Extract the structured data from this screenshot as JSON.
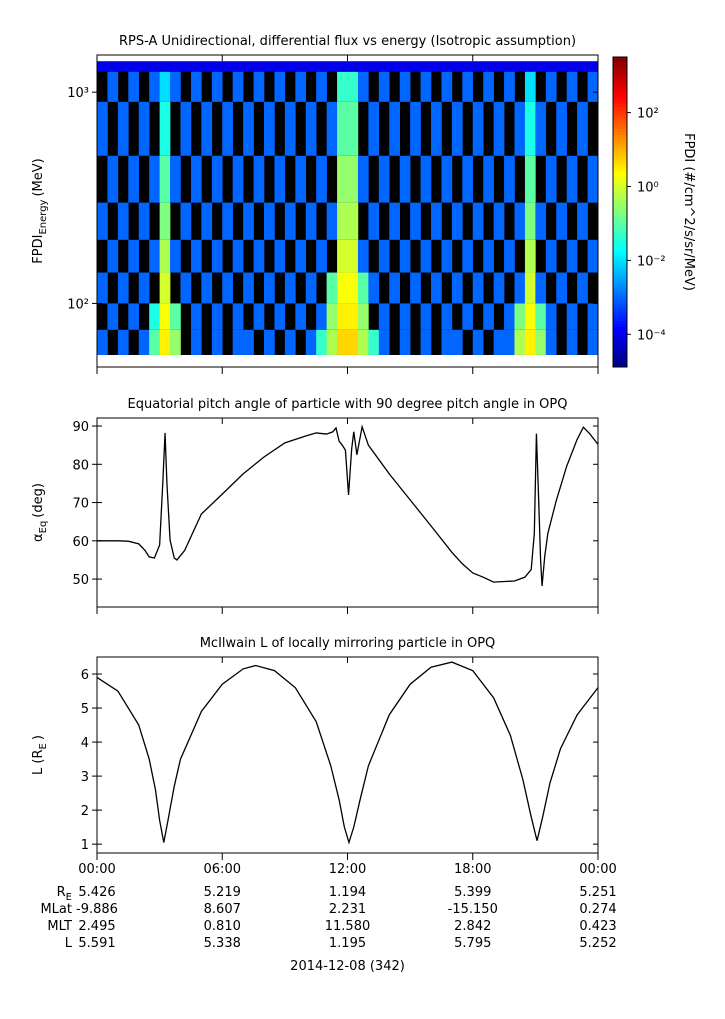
{
  "chart_data": [
    {
      "type": "heatmap",
      "title": "RPS-A Unidirectional, differential flux vs energy (Isotropic assumption)",
      "y_label": "FPDI",
      "y_label_sub": "Energy",
      "y_label_unit": "(MeV)",
      "z_label": "FPDI (#/cm^2/s/sr/MeV)",
      "log_y": true,
      "log_z": true,
      "xlim": [
        0,
        24
      ],
      "xticks": [
        0,
        6,
        12,
        18,
        24
      ],
      "ylim": [
        50,
        1500
      ],
      "yticks": [
        {
          "value": 100,
          "label": "10²"
        },
        {
          "value": 1000,
          "label": "10³"
        }
      ],
      "zlim": [
        1.3e-05,
        3200
      ],
      "zticks": [
        {
          "value": 0.0001,
          "label": "10⁻⁴"
        },
        {
          "value": 0.01,
          "label": "10⁻²"
        },
        {
          "value": 1,
          "label": "10⁰"
        },
        {
          "value": 100,
          "label": "10²"
        }
      ],
      "x_bins": [
        0,
        0.5,
        1,
        1.5,
        2,
        2.5,
        3,
        3.5,
        4,
        4.5,
        5,
        5.5,
        6,
        6.5,
        7,
        7.5,
        8,
        8.5,
        9,
        9.5,
        10,
        10.5,
        11,
        11.5,
        12,
        12.5,
        13,
        13.5,
        14,
        14.5,
        15,
        15.5,
        16,
        16.5,
        17,
        17.5,
        18,
        18.5,
        19,
        19.5,
        20,
        20.5,
        21,
        21.5,
        22,
        22.5,
        23,
        23.5,
        24
      ],
      "y_bins": [
        57,
        75,
        100,
        140,
        200,
        300,
        500,
        900,
        1250,
        1400
      ],
      "values": [
        [
          0.001,
          null,
          0.001,
          null,
          0.001,
          0.1,
          3,
          0.3,
          null,
          0.001,
          null,
          0.001,
          null,
          0.001,
          0.001,
          null,
          0.001,
          null,
          0.001,
          null,
          0.001,
          0.05,
          0.5,
          5,
          5,
          0.5,
          0.05,
          0.001,
          null,
          0.001,
          null,
          0.001,
          null,
          0.001,
          0.001,
          null,
          0.001,
          null,
          0.001,
          0.001,
          0.5,
          3,
          0.3,
          0.001,
          null,
          0.001,
          null,
          0.001
        ],
        [
          null,
          0.001,
          null,
          0.001,
          null,
          0.03,
          2,
          0.1,
          null,
          0.001,
          null,
          0.001,
          null,
          0.001,
          null,
          0.001,
          null,
          0.001,
          null,
          0.001,
          null,
          0.001,
          0.3,
          3,
          3,
          0.3,
          null,
          0.001,
          null,
          0.001,
          null,
          0.001,
          null,
          0.001,
          null,
          0.001,
          null,
          0.001,
          null,
          0.001,
          0.2,
          2,
          0.1,
          0.001,
          null,
          0.001,
          null,
          0.001
        ],
        [
          0.001,
          null,
          0.001,
          null,
          0.001,
          null,
          1,
          null,
          0.001,
          null,
          0.001,
          null,
          0.001,
          null,
          0.001,
          null,
          0.001,
          null,
          0.001,
          null,
          0.001,
          null,
          0.1,
          2,
          2,
          0.1,
          0.001,
          null,
          0.001,
          null,
          0.001,
          null,
          0.001,
          null,
          0.001,
          null,
          0.001,
          null,
          0.001,
          null,
          0.001,
          1,
          0.001,
          null,
          0.001,
          null,
          0.001,
          null
        ],
        [
          null,
          0.001,
          null,
          0.001,
          null,
          0.001,
          0.5,
          0.001,
          null,
          0.001,
          null,
          0.001,
          null,
          0.001,
          null,
          0.001,
          null,
          0.001,
          null,
          0.001,
          null,
          0.001,
          null,
          1,
          1,
          0.001,
          null,
          0.001,
          null,
          0.001,
          null,
          0.001,
          null,
          0.001,
          null,
          0.001,
          null,
          0.001,
          null,
          0.001,
          null,
          0.5,
          null,
          0.001,
          null,
          0.001,
          null,
          0.001
        ],
        [
          0.001,
          null,
          0.001,
          null,
          0.001,
          null,
          0.2,
          null,
          0.001,
          null,
          0.001,
          null,
          0.001,
          null,
          0.001,
          null,
          0.001,
          null,
          0.001,
          null,
          0.001,
          null,
          0.001,
          0.5,
          0.5,
          null,
          0.001,
          null,
          0.001,
          null,
          0.001,
          null,
          0.001,
          null,
          0.001,
          null,
          0.001,
          null,
          0.001,
          null,
          0.001,
          0.2,
          0.001,
          null,
          0.001,
          null,
          0.001,
          null
        ],
        [
          null,
          0.001,
          null,
          0.001,
          null,
          0.001,
          0.1,
          0.001,
          null,
          0.001,
          null,
          0.001,
          null,
          0.001,
          null,
          0.001,
          null,
          0.001,
          null,
          0.001,
          null,
          0.001,
          null,
          0.3,
          0.3,
          0.001,
          null,
          0.001,
          null,
          0.001,
          null,
          0.001,
          null,
          0.001,
          null,
          0.001,
          null,
          0.001,
          null,
          0.001,
          null,
          0.1,
          null,
          0.001,
          null,
          0.001,
          null,
          0.001
        ],
        [
          0.001,
          null,
          0.001,
          null,
          0.001,
          null,
          0.03,
          null,
          0.001,
          null,
          0.001,
          null,
          0.001,
          null,
          0.001,
          null,
          0.001,
          null,
          0.001,
          null,
          0.001,
          null,
          0.001,
          0.1,
          0.1,
          null,
          0.001,
          null,
          0.001,
          null,
          0.001,
          null,
          0.001,
          null,
          0.001,
          null,
          0.001,
          null,
          0.001,
          null,
          0.001,
          0.03,
          0.001,
          null,
          0.001,
          null,
          0.001,
          null
        ],
        [
          null,
          0.001,
          null,
          0.001,
          null,
          0.001,
          0.01,
          0.001,
          null,
          0.001,
          null,
          0.001,
          null,
          0.001,
          null,
          0.001,
          null,
          0.001,
          null,
          0.001,
          null,
          0.001,
          null,
          0.05,
          0.05,
          0.001,
          null,
          0.001,
          null,
          0.001,
          null,
          0.001,
          null,
          0.001,
          null,
          0.001,
          null,
          0.001,
          null,
          0.001,
          null,
          0.01,
          null,
          0.001,
          null,
          0.001,
          null,
          0.001
        ],
        [
          0.0001,
          0.0001,
          0.0001,
          0.0001,
          0.0001,
          0.0001,
          0.0001,
          0.0001,
          0.0001,
          0.0001,
          0.0001,
          0.0001,
          0.0001,
          0.0001,
          0.0001,
          0.0001,
          0.0001,
          0.0001,
          0.0001,
          0.0001,
          0.0001,
          0.0001,
          0.0001,
          0.0001,
          0.0001,
          0.0001,
          0.0001,
          0.0001,
          0.0001,
          0.0001,
          0.0001,
          0.0001,
          0.0001,
          0.0001,
          0.0001,
          0.0001,
          0.0001,
          0.0001,
          0.0001,
          0.0001,
          0.0001,
          0.0001,
          0.0001,
          0.0001,
          0.0001,
          0.0001,
          0.0001,
          0.0001
        ]
      ]
    },
    {
      "type": "line",
      "title": "Equatorial pitch angle of particle with 90 degree pitch angle in OPQ",
      "y_label": "α",
      "y_label_sub": "Eq",
      "y_label_unit": "(deg)",
      "color": "#000000",
      "xlim": [
        0,
        24
      ],
      "xticks": [
        0,
        6,
        12,
        18,
        24
      ],
      "ylim": [
        42.7,
        92.1
      ],
      "yticks": [
        50,
        60,
        70,
        80,
        90
      ],
      "x": [
        0,
        1,
        1.5,
        2,
        2.3,
        2.5,
        2.75,
        3.0,
        3.15,
        3.26,
        3.35,
        3.5,
        3.7,
        3.83,
        4.2,
        5,
        6,
        7,
        8,
        9,
        10,
        10.5,
        11,
        11.3,
        11.45,
        11.6,
        11.75,
        11.9,
        12.05,
        12.2,
        12.3,
        12.45,
        12.7,
        13,
        14,
        15,
        16,
        17,
        17.5,
        18,
        18.5,
        19,
        20,
        20.5,
        20.8,
        20.95,
        21.05,
        21.15,
        21.25,
        21.32,
        21.45,
        21.6,
        22,
        22.5,
        23,
        23.3,
        23.6,
        24
      ],
      "values": [
        60,
        60,
        59.9,
        59.2,
        57.5,
        55.8,
        55.5,
        58.9,
        75,
        88.2,
        75,
        60.2,
        55.5,
        55,
        57.5,
        67,
        72.2,
        77.5,
        81.9,
        85.6,
        87.4,
        88.2,
        87.9,
        88.5,
        89.5,
        86,
        85,
        83.7,
        72,
        84,
        88.5,
        82.5,
        89.8,
        85,
        77.5,
        70.7,
        63.9,
        57,
        54,
        51.6,
        50.5,
        49.2,
        49.5,
        50.5,
        52.5,
        62,
        88,
        72,
        55,
        48.2,
        56,
        62,
        70.5,
        79.5,
        86.5,
        89.7,
        88,
        85.2
      ]
    },
    {
      "type": "line",
      "title": "McIlwain L of locally mirroring particle in OPQ",
      "y_label": "L (R",
      "y_label_sub": "E",
      "y_label_unit": ")",
      "color": "#000000",
      "xlim": [
        0,
        24
      ],
      "xticks": [
        {
          "value": 0,
          "label": "00:00"
        },
        {
          "value": 6,
          "label": "06:00"
        },
        {
          "value": 12,
          "label": "12:00"
        },
        {
          "value": 18,
          "label": "18:00"
        },
        {
          "value": 24,
          "label": "00:00"
        }
      ],
      "ylim": [
        0.74,
        6.5
      ],
      "yticks": [
        1,
        2,
        3,
        4,
        5,
        6
      ],
      "x": [
        0,
        1,
        2,
        2.5,
        2.8,
        3.0,
        3.2,
        3.4,
        3.7,
        4,
        5,
        6,
        7,
        7.6,
        8.5,
        9.5,
        10.5,
        11.2,
        11.6,
        11.85,
        12.07,
        12.3,
        12.6,
        13,
        14,
        15,
        16,
        17,
        18,
        19,
        19.8,
        20.4,
        20.8,
        21.08,
        21.35,
        21.7,
        22.2,
        23,
        24
      ],
      "values": [
        5.9,
        5.5,
        4.5,
        3.5,
        2.6,
        1.7,
        1.05,
        1.7,
        2.7,
        3.5,
        4.9,
        5.7,
        6.15,
        6.25,
        6.1,
        5.6,
        4.6,
        3.3,
        2.3,
        1.5,
        1.05,
        1.5,
        2.3,
        3.3,
        4.8,
        5.7,
        6.2,
        6.35,
        6.1,
        5.3,
        4.2,
        2.9,
        1.8,
        1.1,
        1.8,
        2.8,
        3.8,
        4.8,
        5.6
      ]
    }
  ],
  "footer": {
    "rows": [
      {
        "label": "R",
        "label_sub": "E",
        "values": [
          "5.426",
          "5.219",
          "1.194",
          "5.399",
          "5.251"
        ]
      },
      {
        "label": "MLat",
        "values": [
          "-9.886",
          "8.607",
          "2.231",
          "-15.150",
          "0.274"
        ]
      },
      {
        "label": "MLT",
        "values": [
          "2.495",
          "0.810",
          "11.580",
          "2.842",
          "0.423"
        ]
      },
      {
        "label": "L",
        "values": [
          "5.591",
          "5.338",
          "1.195",
          "5.795",
          "5.252"
        ]
      }
    ],
    "date": "2014-12-08 (342)"
  }
}
